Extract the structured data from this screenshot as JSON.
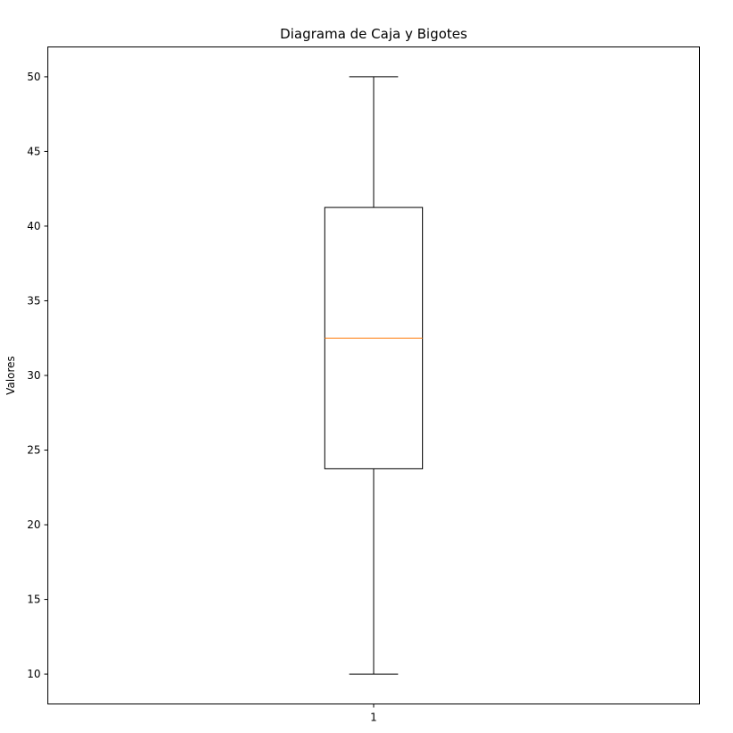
{
  "chart_data": {
    "type": "boxplot",
    "title": "Diagrama de Caja y Bigotes",
    "xlabel": "",
    "ylabel": "Valores",
    "categories": [
      "1"
    ],
    "boxes": [
      {
        "category": "1",
        "whisker_low": 10,
        "q1": 23.75,
        "median": 32.5,
        "q3": 41.25,
        "whisker_high": 50
      }
    ],
    "yticks": [
      "10",
      "15",
      "20",
      "25",
      "30",
      "35",
      "40",
      "45",
      "50"
    ],
    "ylim": [
      8,
      52
    ],
    "grid": false,
    "colors": {
      "box": "#000000",
      "median": "#ff7f0e",
      "whisker": "#000000",
      "axes": "#000000"
    }
  }
}
